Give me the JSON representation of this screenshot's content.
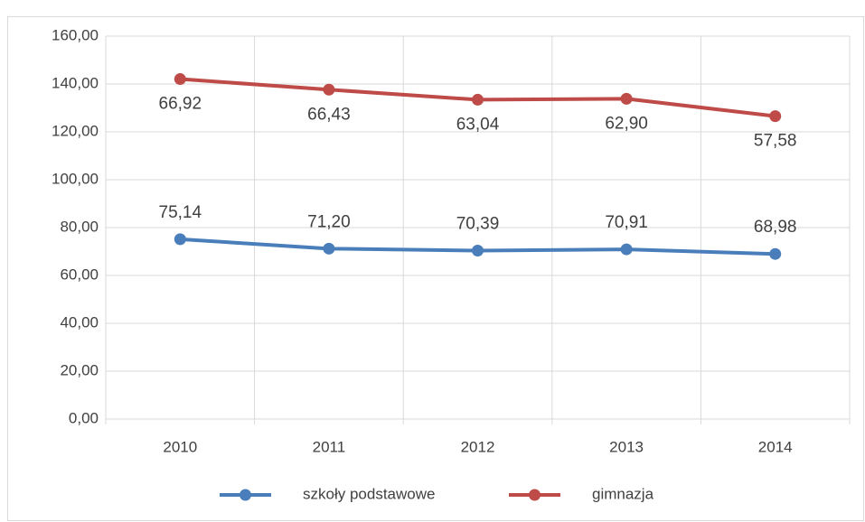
{
  "chart_data": {
    "type": "line",
    "stacked": true,
    "categories": [
      "2010",
      "2011",
      "2012",
      "2013",
      "2014"
    ],
    "series": [
      {
        "name": "szkoły podstawowe",
        "color": "#4a7ebb",
        "values": [
          75.14,
          71.2,
          70.39,
          70.91,
          68.98
        ],
        "value_labels": [
          "75,14",
          "71,20",
          "70,39",
          "70,91",
          "68,98"
        ]
      },
      {
        "name": "gimnazja",
        "color": "#be4b48",
        "values": [
          66.92,
          66.43,
          63.04,
          62.9,
          57.58
        ],
        "value_labels": [
          "66,92",
          "66,43",
          "63,04",
          "62,90",
          "57,58"
        ]
      }
    ],
    "ylim": [
      0,
      160
    ],
    "yticks": [
      {
        "value": 0,
        "label": "0,00"
      },
      {
        "value": 20,
        "label": "20,00"
      },
      {
        "value": 40,
        "label": "40,00"
      },
      {
        "value": 60,
        "label": "60,00"
      },
      {
        "value": 80,
        "label": "80,00"
      },
      {
        "value": 100,
        "label": "100,00"
      },
      {
        "value": 120,
        "label": "120,00"
      },
      {
        "value": 140,
        "label": "140,00"
      },
      {
        "value": 160,
        "label": "160,00"
      }
    ],
    "grid": true,
    "legend": "bottom"
  }
}
